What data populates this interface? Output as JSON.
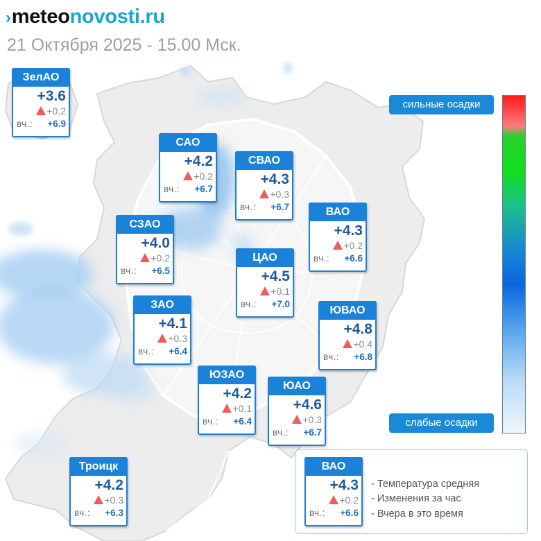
{
  "header": {
    "logo_mark": "›",
    "logo_part1": "meteo",
    "logo_part2": "novosti.ru",
    "datetime": "21 Октября 2025 - 15.00 Мск."
  },
  "yesterday_label": "вч.:",
  "districts": [
    {
      "id": "zelao",
      "name": "ЗелАО",
      "temp": "+3.6",
      "change": "+0.2",
      "yesterday": "+6.9"
    },
    {
      "id": "sao",
      "name": "САО",
      "temp": "+4.2",
      "change": "+0.2",
      "yesterday": "+6.7"
    },
    {
      "id": "svao",
      "name": "СВАО",
      "temp": "+4.3",
      "change": "+0.3",
      "yesterday": "+6.7"
    },
    {
      "id": "vao",
      "name": "ВАО",
      "temp": "+4.3",
      "change": "+0.2",
      "yesterday": "+6.6"
    },
    {
      "id": "szao",
      "name": "СЗАО",
      "temp": "+4.0",
      "change": "+0.2",
      "yesterday": "+6.5"
    },
    {
      "id": "cao",
      "name": "ЦАО",
      "temp": "+4.5",
      "change": "+0.1",
      "yesterday": "+7.0"
    },
    {
      "id": "zao",
      "name": "ЗАО",
      "temp": "+4.1",
      "change": "+0.3",
      "yesterday": "+6.4"
    },
    {
      "id": "yuvao",
      "name": "ЮВАО",
      "temp": "+4.8",
      "change": "+0.4",
      "yesterday": "+6.8"
    },
    {
      "id": "yuzao",
      "name": "ЮЗАО",
      "temp": "+4.2",
      "change": "+0.1",
      "yesterday": "+6.4"
    },
    {
      "id": "yuao",
      "name": "ЮАО",
      "temp": "+4.6",
      "change": "+0.3",
      "yesterday": "+6.7"
    },
    {
      "id": "troitsk",
      "name": "Троицк",
      "temp": "+4.2",
      "change": "+0.3",
      "yesterday": "+6.3"
    }
  ],
  "precip_scale": {
    "strong_label": "сильные осадки",
    "weak_label": "слабые осадки"
  },
  "legend": {
    "sample": {
      "name": "ВАО",
      "temp": "+4.3",
      "change": "+0.2",
      "yesterday": "+6.6"
    },
    "items": [
      "- Температура средняя",
      "- Изменения за час",
      "- Вчера в это время"
    ]
  },
  "colors": {
    "card_header": "#1a82d8",
    "temp_text": "#1f5a9c",
    "change_arrow": "#ee5c5c",
    "yesterday_value": "#1c6cc0",
    "precip_strong": "#ff1a1a",
    "precip_weak": "#eef6fd"
  }
}
